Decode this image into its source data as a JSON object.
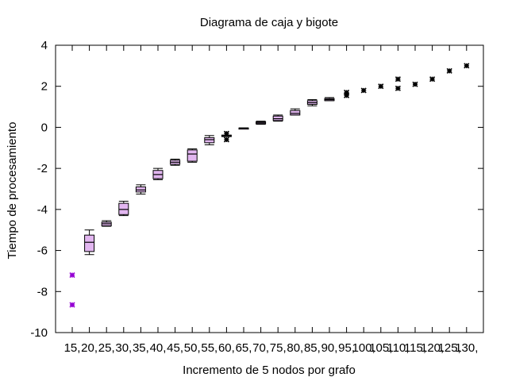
{
  "chart_data": {
    "type": "boxplot",
    "title": "Diagrama de caja y bigote",
    "xlabel": "Incremento de 5 nodos por grafo",
    "ylabel": "Tiempo de procesamiento",
    "ylim": [
      -10,
      4
    ],
    "yticks": [
      -10,
      -8,
      -6,
      -4,
      -2,
      0,
      2,
      4
    ],
    "grid": false,
    "categories": [
      "15,",
      "20,",
      "25,",
      "30,",
      "35,",
      "40,",
      "45,",
      "50,",
      "55,",
      "60,",
      "65,",
      "70,",
      "75,",
      "80,",
      "85,",
      "90,",
      "95,",
      "100,",
      "105,",
      "110,",
      "115,",
      "120,",
      "125,",
      "130,"
    ],
    "box_color": "#e2b6f0",
    "outlier_color": "#000000",
    "highlight_color": "#9400d3",
    "boxes": [
      {
        "category": "15,",
        "outliers": [
          -7.2,
          -8.65
        ],
        "highlight": true
      },
      {
        "category": "20,",
        "whisker_low": -6.2,
        "q1": -6.05,
        "median": -5.6,
        "q3": -5.25,
        "whisker_high": -5.0
      },
      {
        "category": "25,",
        "whisker_low": -4.82,
        "q1": -4.8,
        "median": -4.7,
        "q3": -4.62,
        "whisker_high": -4.55
      },
      {
        "category": "30,",
        "whisker_low": -4.3,
        "q1": -4.25,
        "median": -4.0,
        "q3": -3.7,
        "whisker_high": -3.6
      },
      {
        "category": "35,",
        "whisker_low": -3.25,
        "q1": -3.15,
        "median": -3.05,
        "q3": -2.9,
        "whisker_high": -2.8
      },
      {
        "category": "40,",
        "whisker_low": -2.55,
        "q1": -2.5,
        "median": -2.3,
        "q3": -2.1,
        "whisker_high": -2.0
      },
      {
        "category": "45,",
        "whisker_low": -1.85,
        "q1": -1.8,
        "median": -1.7,
        "q3": -1.6,
        "whisker_high": -1.55
      },
      {
        "category": "50,",
        "whisker_low": -1.7,
        "q1": -1.65,
        "median": -1.3,
        "q3": -1.1,
        "whisker_high": -1.05
      },
      {
        "category": "55,",
        "whisker_low": -0.85,
        "q1": -0.75,
        "median": -0.6,
        "q3": -0.5,
        "whisker_high": -0.4
      },
      {
        "category": "60,",
        "whisker_low": -0.45,
        "q1": -0.45,
        "median": -0.42,
        "q3": -0.38,
        "whisker_high": -0.38,
        "outliers": [
          -0.3,
          -0.6
        ]
      },
      {
        "category": "65,",
        "whisker_low": -0.05,
        "q1": -0.05,
        "median": -0.04,
        "q3": -0.03,
        "whisker_high": -0.03
      },
      {
        "category": "70,",
        "whisker_low": 0.15,
        "q1": 0.17,
        "median": 0.22,
        "q3": 0.27,
        "whisker_high": 0.3
      },
      {
        "category": "75,",
        "whisker_low": 0.3,
        "q1": 0.33,
        "median": 0.42,
        "q3": 0.55,
        "whisker_high": 0.6
      },
      {
        "category": "80,",
        "whisker_low": 0.6,
        "q1": 0.6,
        "median": 0.68,
        "q3": 0.82,
        "whisker_high": 0.9
      },
      {
        "category": "85,",
        "whisker_low": 1.05,
        "q1": 1.12,
        "median": 1.2,
        "q3": 1.3,
        "whisker_high": 1.35
      },
      {
        "category": "90,",
        "whisker_low": 1.3,
        "q1": 1.3,
        "median": 1.35,
        "q3": 1.4,
        "whisker_high": 1.45
      },
      {
        "category": "95,",
        "outliers": [
          1.55,
          1.7
        ]
      },
      {
        "category": "100,",
        "outliers": [
          1.8
        ]
      },
      {
        "category": "105,",
        "outliers": [
          2.0
        ]
      },
      {
        "category": "110,",
        "outliers": [
          2.35,
          1.9
        ]
      },
      {
        "category": "115,",
        "outliers": [
          2.1
        ]
      },
      {
        "category": "120,",
        "outliers": [
          2.35
        ]
      },
      {
        "category": "125,",
        "outliers": [
          2.75
        ]
      },
      {
        "category": "130,",
        "outliers": [
          3.0
        ]
      }
    ]
  }
}
